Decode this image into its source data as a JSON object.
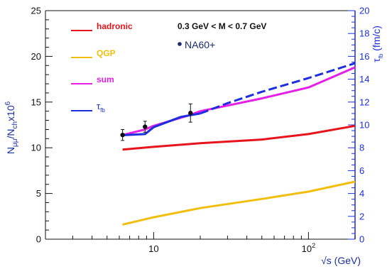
{
  "chart_data": {
    "type": "line",
    "x_scale": "log",
    "xlim": [
      2,
      200
    ],
    "ylim": [
      0,
      25
    ],
    "y2lim": [
      0,
      20
    ],
    "grid": false,
    "xlabel": "√s (GeV)",
    "ylabel": {
      "main": "N",
      "sub1": "μμ",
      "slash": "/N",
      "sub2": "ch",
      "times": "x10",
      "sup": "6"
    },
    "y2label": {
      "main": "τ",
      "sub": "fb",
      "unit": "(fm/c)"
    },
    "x_ticks": [
      {
        "value": 10,
        "label": "10"
      },
      {
        "value": 100,
        "label": "10",
        "sup": "2"
      }
    ],
    "y_ticks": [
      {
        "value": 0,
        "label": "0"
      },
      {
        "value": 5,
        "label": "5"
      },
      {
        "value": 10,
        "label": "10"
      },
      {
        "value": 15,
        "label": "15"
      },
      {
        "value": 20,
        "label": "20"
      },
      {
        "value": 25,
        "label": "25"
      }
    ],
    "y2_ticks": [
      {
        "value": 0,
        "label": "0"
      },
      {
        "value": 2,
        "label": "2"
      },
      {
        "value": 4,
        "label": "4"
      },
      {
        "value": 6,
        "label": "6"
      },
      {
        "value": 8,
        "label": "8"
      },
      {
        "value": 10,
        "label": "10"
      },
      {
        "value": 12,
        "label": "12"
      },
      {
        "value": 14,
        "label": "14"
      },
      {
        "value": 16,
        "label": "16"
      },
      {
        "value": 18,
        "label": "18"
      },
      {
        "value": 20,
        "label": "20"
      }
    ],
    "annotation": "0.3 GeV < M < 0.7 GeV",
    "series": [
      {
        "name": "hadronic",
        "color": "#e8141c",
        "axis": "left",
        "style": "solid",
        "x": [
          6.3,
          10,
          20,
          50,
          100,
          200
        ],
        "y": [
          9.8,
          10.1,
          10.5,
          10.9,
          11.5,
          12.4
        ]
      },
      {
        "name": "QGP",
        "color": "#f2be0c",
        "axis": "left",
        "style": "solid",
        "x": [
          6.3,
          10,
          20,
          50,
          100,
          200
        ],
        "y": [
          1.6,
          2.4,
          3.4,
          4.4,
          5.2,
          6.3
        ]
      },
      {
        "name": "sum",
        "color": "#e61ee6",
        "axis": "left",
        "style": "solid",
        "x": [
          6.3,
          8.8,
          10,
          17.3,
          20,
          50,
          100,
          200
        ],
        "y": [
          11.4,
          12.0,
          12.4,
          13.6,
          14.0,
          15.4,
          16.6,
          18.8
        ]
      },
      {
        "name": "τ_fb",
        "color": "#1c2ee0",
        "axis": "right",
        "segments": [
          {
            "style": "solid",
            "x": [
              6.3,
              8.8,
              10,
              15,
              20
            ],
            "y": [
              9.1,
              9.2,
              9.8,
              10.7,
              11.0
            ]
          },
          {
            "style": "dashed",
            "x": [
              20,
              30,
              50,
              100,
              200
            ],
            "y": [
              11.0,
              11.9,
              12.9,
              14.1,
              15.4
            ]
          }
        ]
      }
    ],
    "legend": {
      "placement": "top-left",
      "entries": [
        {
          "label": "hadronic",
          "color": "#e8141c"
        },
        {
          "label": "QGP",
          "color": "#f2be0c"
        },
        {
          "label": "sum",
          "color": "#e61ee6"
        },
        {
          "label": "τ",
          "sub": "fb",
          "color": "#1c2ee0"
        }
      ]
    },
    "data_series": {
      "name": "NA60+",
      "color": "#111111",
      "x": [
        6.3,
        8.8,
        17.3
      ],
      "y": [
        11.4,
        12.3,
        13.8
      ],
      "yerr": [
        0.6,
        0.6,
        1.0
      ]
    },
    "colors": {
      "axis_left": "#111111",
      "axis_right": "#1c2ee0",
      "axis_label_left": "#1a2fa0",
      "axis_label_x": "#1a2fa0",
      "data_marker": "#1a2a6c"
    }
  }
}
